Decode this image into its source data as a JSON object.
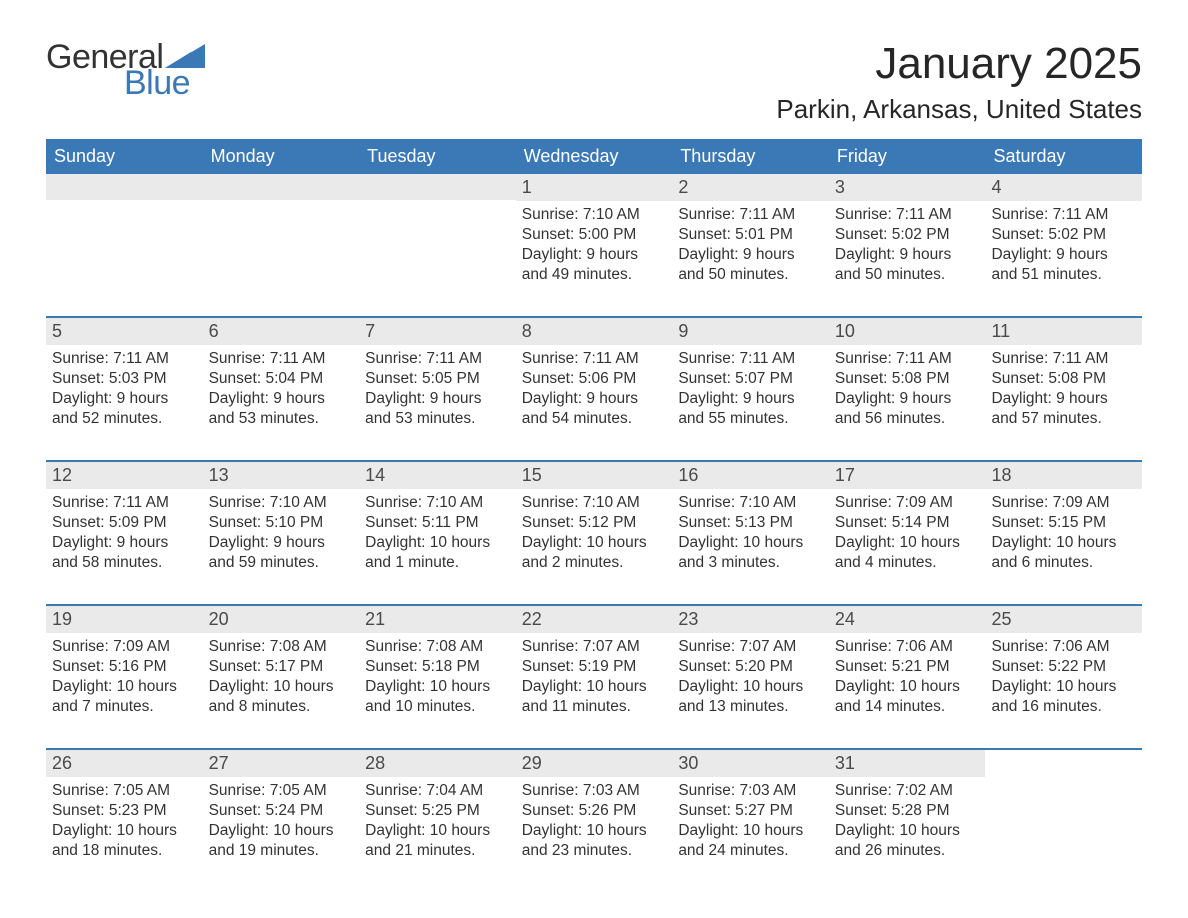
{
  "logo": {
    "text_general": "General",
    "text_blue": "Blue",
    "flag_color": "#3a78b6"
  },
  "title": "January 2025",
  "location": "Parkin, Arkansas, United States",
  "colors": {
    "header_bg": "#3a78b6",
    "header_text": "#ffffff",
    "daynum_bg": "#eaeaea",
    "week_divider": "#3a78b6",
    "body_text": "#333333",
    "page_bg": "#ffffff"
  },
  "day_names": [
    "Sunday",
    "Monday",
    "Tuesday",
    "Wednesday",
    "Thursday",
    "Friday",
    "Saturday"
  ],
  "weeks": [
    [
      null,
      null,
      null,
      {
        "day": "1",
        "sunrise": "Sunrise: 7:10 AM",
        "sunset": "Sunset: 5:00 PM",
        "dl1": "Daylight: 9 hours",
        "dl2": "and 49 minutes."
      },
      {
        "day": "2",
        "sunrise": "Sunrise: 7:11 AM",
        "sunset": "Sunset: 5:01 PM",
        "dl1": "Daylight: 9 hours",
        "dl2": "and 50 minutes."
      },
      {
        "day": "3",
        "sunrise": "Sunrise: 7:11 AM",
        "sunset": "Sunset: 5:02 PM",
        "dl1": "Daylight: 9 hours",
        "dl2": "and 50 minutes."
      },
      {
        "day": "4",
        "sunrise": "Sunrise: 7:11 AM",
        "sunset": "Sunset: 5:02 PM",
        "dl1": "Daylight: 9 hours",
        "dl2": "and 51 minutes."
      }
    ],
    [
      {
        "day": "5",
        "sunrise": "Sunrise: 7:11 AM",
        "sunset": "Sunset: 5:03 PM",
        "dl1": "Daylight: 9 hours",
        "dl2": "and 52 minutes."
      },
      {
        "day": "6",
        "sunrise": "Sunrise: 7:11 AM",
        "sunset": "Sunset: 5:04 PM",
        "dl1": "Daylight: 9 hours",
        "dl2": "and 53 minutes."
      },
      {
        "day": "7",
        "sunrise": "Sunrise: 7:11 AM",
        "sunset": "Sunset: 5:05 PM",
        "dl1": "Daylight: 9 hours",
        "dl2": "and 53 minutes."
      },
      {
        "day": "8",
        "sunrise": "Sunrise: 7:11 AM",
        "sunset": "Sunset: 5:06 PM",
        "dl1": "Daylight: 9 hours",
        "dl2": "and 54 minutes."
      },
      {
        "day": "9",
        "sunrise": "Sunrise: 7:11 AM",
        "sunset": "Sunset: 5:07 PM",
        "dl1": "Daylight: 9 hours",
        "dl2": "and 55 minutes."
      },
      {
        "day": "10",
        "sunrise": "Sunrise: 7:11 AM",
        "sunset": "Sunset: 5:08 PM",
        "dl1": "Daylight: 9 hours",
        "dl2": "and 56 minutes."
      },
      {
        "day": "11",
        "sunrise": "Sunrise: 7:11 AM",
        "sunset": "Sunset: 5:08 PM",
        "dl1": "Daylight: 9 hours",
        "dl2": "and 57 minutes."
      }
    ],
    [
      {
        "day": "12",
        "sunrise": "Sunrise: 7:11 AM",
        "sunset": "Sunset: 5:09 PM",
        "dl1": "Daylight: 9 hours",
        "dl2": "and 58 minutes."
      },
      {
        "day": "13",
        "sunrise": "Sunrise: 7:10 AM",
        "sunset": "Sunset: 5:10 PM",
        "dl1": "Daylight: 9 hours",
        "dl2": "and 59 minutes."
      },
      {
        "day": "14",
        "sunrise": "Sunrise: 7:10 AM",
        "sunset": "Sunset: 5:11 PM",
        "dl1": "Daylight: 10 hours",
        "dl2": "and 1 minute."
      },
      {
        "day": "15",
        "sunrise": "Sunrise: 7:10 AM",
        "sunset": "Sunset: 5:12 PM",
        "dl1": "Daylight: 10 hours",
        "dl2": "and 2 minutes."
      },
      {
        "day": "16",
        "sunrise": "Sunrise: 7:10 AM",
        "sunset": "Sunset: 5:13 PM",
        "dl1": "Daylight: 10 hours",
        "dl2": "and 3 minutes."
      },
      {
        "day": "17",
        "sunrise": "Sunrise: 7:09 AM",
        "sunset": "Sunset: 5:14 PM",
        "dl1": "Daylight: 10 hours",
        "dl2": "and 4 minutes."
      },
      {
        "day": "18",
        "sunrise": "Sunrise: 7:09 AM",
        "sunset": "Sunset: 5:15 PM",
        "dl1": "Daylight: 10 hours",
        "dl2": "and 6 minutes."
      }
    ],
    [
      {
        "day": "19",
        "sunrise": "Sunrise: 7:09 AM",
        "sunset": "Sunset: 5:16 PM",
        "dl1": "Daylight: 10 hours",
        "dl2": "and 7 minutes."
      },
      {
        "day": "20",
        "sunrise": "Sunrise: 7:08 AM",
        "sunset": "Sunset: 5:17 PM",
        "dl1": "Daylight: 10 hours",
        "dl2": "and 8 minutes."
      },
      {
        "day": "21",
        "sunrise": "Sunrise: 7:08 AM",
        "sunset": "Sunset: 5:18 PM",
        "dl1": "Daylight: 10 hours",
        "dl2": "and 10 minutes."
      },
      {
        "day": "22",
        "sunrise": "Sunrise: 7:07 AM",
        "sunset": "Sunset: 5:19 PM",
        "dl1": "Daylight: 10 hours",
        "dl2": "and 11 minutes."
      },
      {
        "day": "23",
        "sunrise": "Sunrise: 7:07 AM",
        "sunset": "Sunset: 5:20 PM",
        "dl1": "Daylight: 10 hours",
        "dl2": "and 13 minutes."
      },
      {
        "day": "24",
        "sunrise": "Sunrise: 7:06 AM",
        "sunset": "Sunset: 5:21 PM",
        "dl1": "Daylight: 10 hours",
        "dl2": "and 14 minutes."
      },
      {
        "day": "25",
        "sunrise": "Sunrise: 7:06 AM",
        "sunset": "Sunset: 5:22 PM",
        "dl1": "Daylight: 10 hours",
        "dl2": "and 16 minutes."
      }
    ],
    [
      {
        "day": "26",
        "sunrise": "Sunrise: 7:05 AM",
        "sunset": "Sunset: 5:23 PM",
        "dl1": "Daylight: 10 hours",
        "dl2": "and 18 minutes."
      },
      {
        "day": "27",
        "sunrise": "Sunrise: 7:05 AM",
        "sunset": "Sunset: 5:24 PM",
        "dl1": "Daylight: 10 hours",
        "dl2": "and 19 minutes."
      },
      {
        "day": "28",
        "sunrise": "Sunrise: 7:04 AM",
        "sunset": "Sunset: 5:25 PM",
        "dl1": "Daylight: 10 hours",
        "dl2": "and 21 minutes."
      },
      {
        "day": "29",
        "sunrise": "Sunrise: 7:03 AM",
        "sunset": "Sunset: 5:26 PM",
        "dl1": "Daylight: 10 hours",
        "dl2": "and 23 minutes."
      },
      {
        "day": "30",
        "sunrise": "Sunrise: 7:03 AM",
        "sunset": "Sunset: 5:27 PM",
        "dl1": "Daylight: 10 hours",
        "dl2": "and 24 minutes."
      },
      {
        "day": "31",
        "sunrise": "Sunrise: 7:02 AM",
        "sunset": "Sunset: 5:28 PM",
        "dl1": "Daylight: 10 hours",
        "dl2": "and 26 minutes."
      },
      null
    ]
  ]
}
